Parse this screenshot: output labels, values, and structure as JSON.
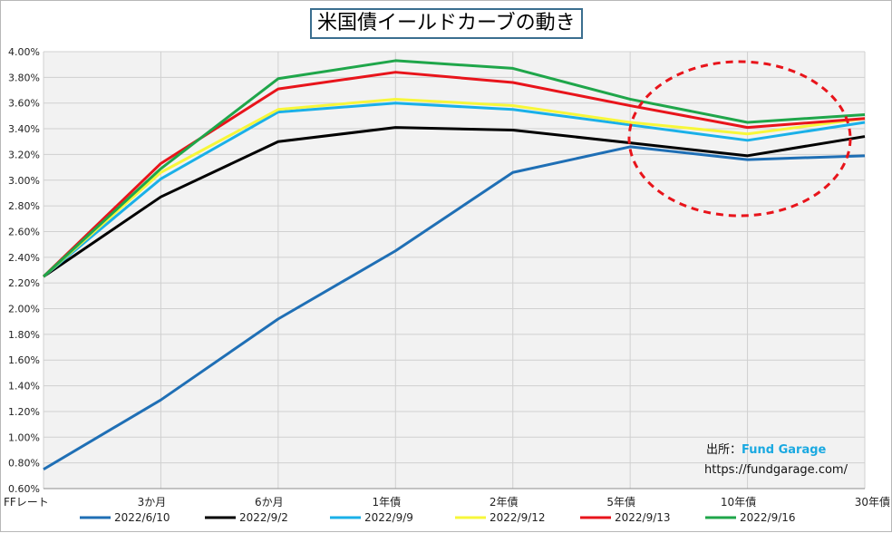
{
  "chart_data": {
    "type": "line",
    "title": "米国債イールドカーブの動き",
    "categories": [
      "FFレート",
      "3か月",
      "6か月",
      "1年債",
      "2年債",
      "5年債",
      "10年債",
      "30年債"
    ],
    "ylim": [
      0.6,
      4.0
    ],
    "yticks": [
      "0.60%",
      "0.80%",
      "1.00%",
      "1.20%",
      "1.40%",
      "1.60%",
      "1.80%",
      "2.00%",
      "2.20%",
      "2.40%",
      "2.60%",
      "2.80%",
      "3.00%",
      "3.20%",
      "3.40%",
      "3.60%",
      "3.80%",
      "4.00%"
    ],
    "grid": true,
    "legend_position": "bottom",
    "series": [
      {
        "name": "2022/6/10",
        "color": "#1f6fb5",
        "values": [
          0.75,
          1.29,
          1.92,
          2.45,
          3.06,
          3.26,
          3.16,
          3.19
        ]
      },
      {
        "name": "2022/9/2",
        "color": "#000000",
        "values": [
          2.25,
          2.87,
          3.3,
          3.41,
          3.39,
          3.29,
          3.19,
          3.34
        ]
      },
      {
        "name": "2022/9/9",
        "color": "#1ab0e8",
        "values": [
          2.25,
          3.01,
          3.53,
          3.6,
          3.55,
          3.43,
          3.31,
          3.45
        ]
      },
      {
        "name": "2022/9/12",
        "color": "#f7f73a",
        "values": [
          2.25,
          3.06,
          3.55,
          3.63,
          3.58,
          3.45,
          3.36,
          3.48
        ]
      },
      {
        "name": "2022/9/13",
        "color": "#e8141b",
        "values": [
          2.25,
          3.13,
          3.71,
          3.84,
          3.76,
          3.58,
          3.41,
          3.48
        ]
      },
      {
        "name": "2022/9/16",
        "color": "#1fa64a",
        "values": [
          2.25,
          3.09,
          3.79,
          3.93,
          3.87,
          3.63,
          3.45,
          3.51
        ]
      }
    ],
    "annotation": {
      "type": "dashed-ellipse",
      "color": "#e8141b",
      "around": "5年債 – 30年債"
    }
  },
  "source": {
    "label": "出所：",
    "name": "Fund Garage",
    "url": "https://fundgarage.com/"
  }
}
